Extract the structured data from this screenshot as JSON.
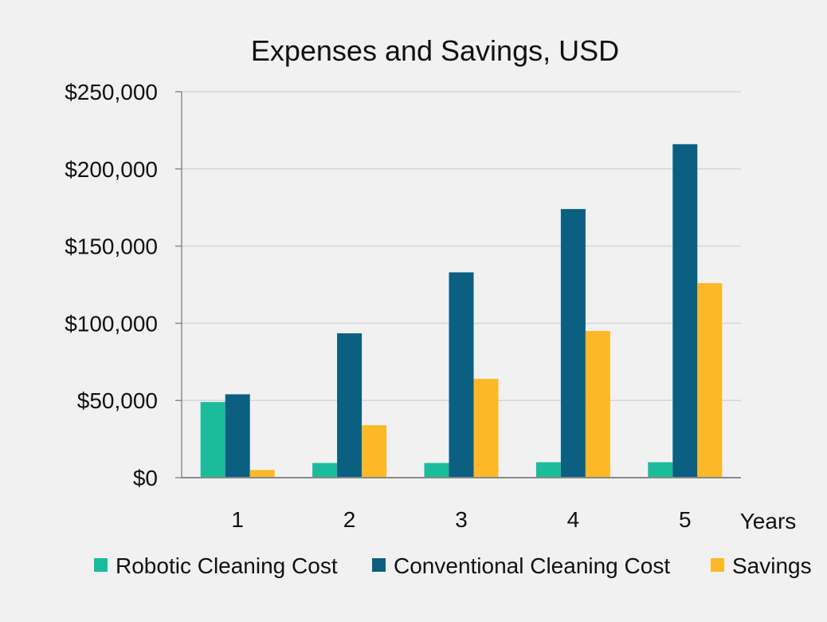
{
  "chart_data": {
    "type": "bar",
    "title": "Expenses and Savings, USD",
    "xlabel": "Years",
    "ylabel": "",
    "categories": [
      "1",
      "2",
      "3",
      "4",
      "5"
    ],
    "ylim": [
      0,
      250000
    ],
    "yticks": [
      0,
      50000,
      100000,
      150000,
      200000,
      250000
    ],
    "ytick_labels": [
      "$0",
      "$50,000",
      "$100,000",
      "$150,000",
      "$200,000",
      "$250,000"
    ],
    "grid": true,
    "legend_position": "bottom",
    "series": [
      {
        "name": "Robotic Cleaning Cost",
        "color": "#1abc9c",
        "values": [
          49000,
          9500,
          9500,
          10000,
          10000
        ]
      },
      {
        "name": "Conventional Cleaning Cost",
        "color": "#0b5f80",
        "values": [
          54000,
          93500,
          133000,
          174000,
          216000
        ]
      },
      {
        "name": "Savings",
        "color": "#fdb827",
        "values": [
          5000,
          34000,
          64000,
          95000,
          126000
        ]
      }
    ]
  }
}
